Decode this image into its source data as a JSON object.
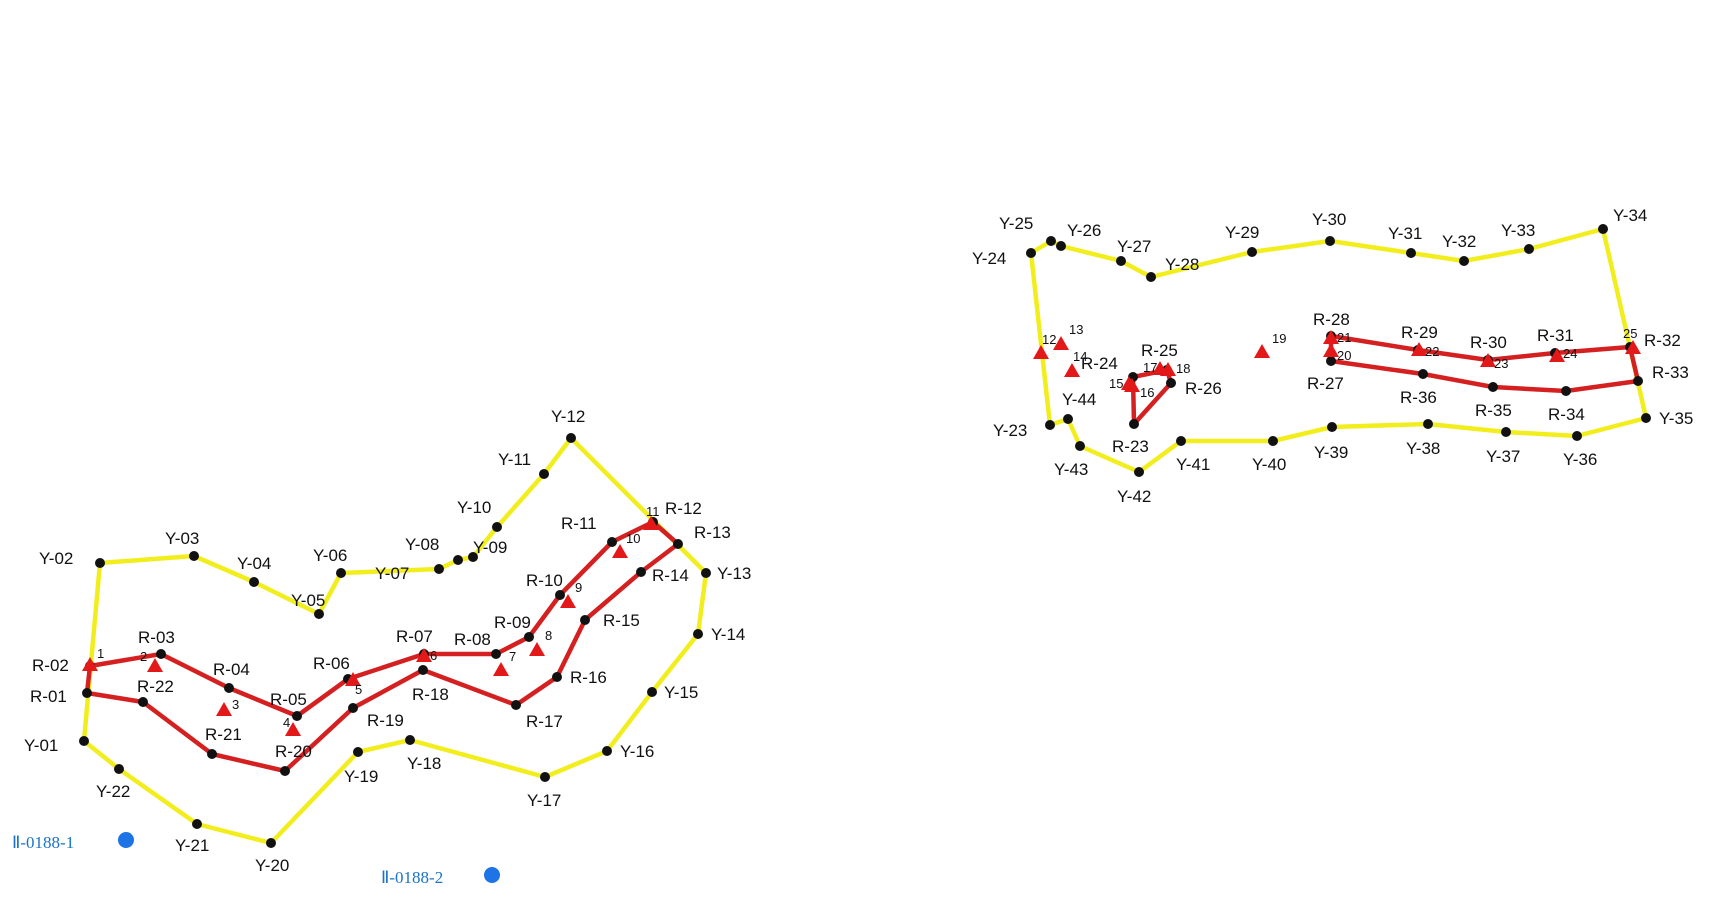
{
  "colors": {
    "yellow_boundary": "#f2ee1e",
    "red_boundary": "#d42020",
    "point_marker": "#111111",
    "triangle_marker": "#e31818",
    "benchmark_marker": "#1e74e6",
    "benchmark_text": "#1a73c9"
  },
  "marker_types": {
    "point": "black-dot",
    "triangle": "red-triangle",
    "benchmark": "blue-dot"
  },
  "benchmarks": [
    {
      "name": "Ⅱ-0188-1"
    },
    {
      "name": "Ⅱ-0188-2"
    }
  ],
  "left_site": {
    "yellow_points": [
      "Y-01",
      "Y-02",
      "Y-03",
      "Y-04",
      "Y-05",
      "Y-06",
      "Y-07",
      "Y-08",
      "Y-09",
      "Y-10",
      "Y-11",
      "Y-12",
      "Y-13",
      "Y-14",
      "Y-15",
      "Y-16",
      "Y-17",
      "Y-18",
      "Y-19",
      "Y-20",
      "Y-21",
      "Y-22"
    ],
    "red_points": [
      "R-01",
      "R-02",
      "R-03",
      "R-04",
      "R-05",
      "R-06",
      "R-07",
      "R-08",
      "R-09",
      "R-10",
      "R-11",
      "R-12",
      "R-13",
      "R-14",
      "R-15",
      "R-16",
      "R-17",
      "R-18",
      "R-19",
      "R-20",
      "R-21",
      "R-22"
    ],
    "triangles": [
      "1",
      "2",
      "3",
      "4",
      "5",
      "6",
      "7",
      "8",
      "9",
      "10",
      "11"
    ]
  },
  "right_site": {
    "yellow_points": [
      "Y-23",
      "Y-24",
      "Y-25",
      "Y-26",
      "Y-27",
      "Y-28",
      "Y-29",
      "Y-30",
      "Y-31",
      "Y-32",
      "Y-33",
      "Y-34",
      "Y-35",
      "Y-36",
      "Y-37",
      "Y-38",
      "Y-39",
      "Y-40",
      "Y-41",
      "Y-42",
      "Y-43",
      "Y-44"
    ],
    "red_points": [
      "R-23",
      "R-24",
      "R-25",
      "R-26",
      "R-27",
      "R-28",
      "R-29",
      "R-30",
      "R-31",
      "R-32",
      "R-33",
      "R-34",
      "R-35",
      "R-36"
    ],
    "triangles": [
      "12",
      "13",
      "14",
      "15",
      "16",
      "17",
      "18",
      "19",
      "20",
      "21",
      "22",
      "23",
      "24",
      "25"
    ]
  }
}
